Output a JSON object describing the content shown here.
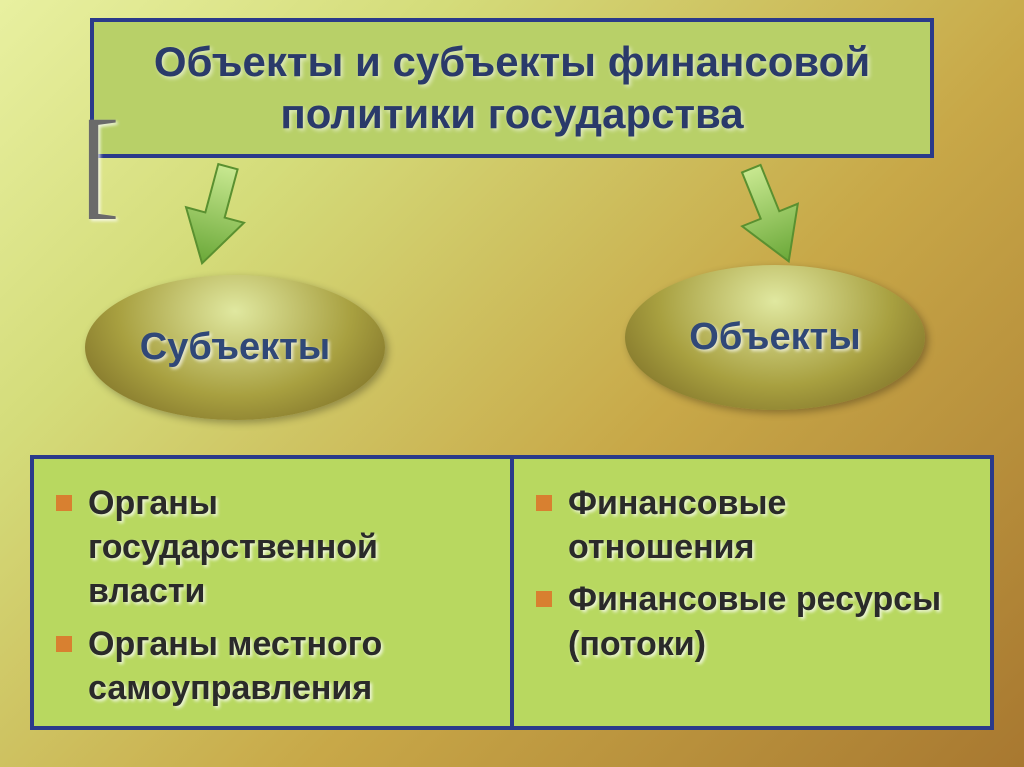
{
  "title": {
    "text": "Объекты и субъекты финансовой политики государства",
    "color": "#2a3a6a",
    "bg": "#b8d068",
    "border": "#2a3a8a"
  },
  "bracket": "[",
  "arrows": {
    "fill": "#8cc850",
    "stroke": "#5a9030"
  },
  "ovals": {
    "left": {
      "label": "Субъекты",
      "gradient_top": "#e0e8a0",
      "gradient_mid": "#a8a040",
      "gradient_bot": "#706020",
      "text_color": "#304878"
    },
    "right": {
      "label": "Объекты",
      "gradient_top": "#e0e8a0",
      "gradient_mid": "#a8a040",
      "gradient_bot": "#706020",
      "text_color": "#304878"
    }
  },
  "lists": {
    "bg": "#b8d860",
    "border": "#2a3a8a",
    "bullet_color": "#d88030",
    "text_color": "#2a2a2a",
    "left": [
      "Органы государственной власти",
      "Органы местного самоуправления"
    ],
    "right": [
      "Финансовые отношения",
      "Финансовые ресурсы (потоки)"
    ]
  }
}
